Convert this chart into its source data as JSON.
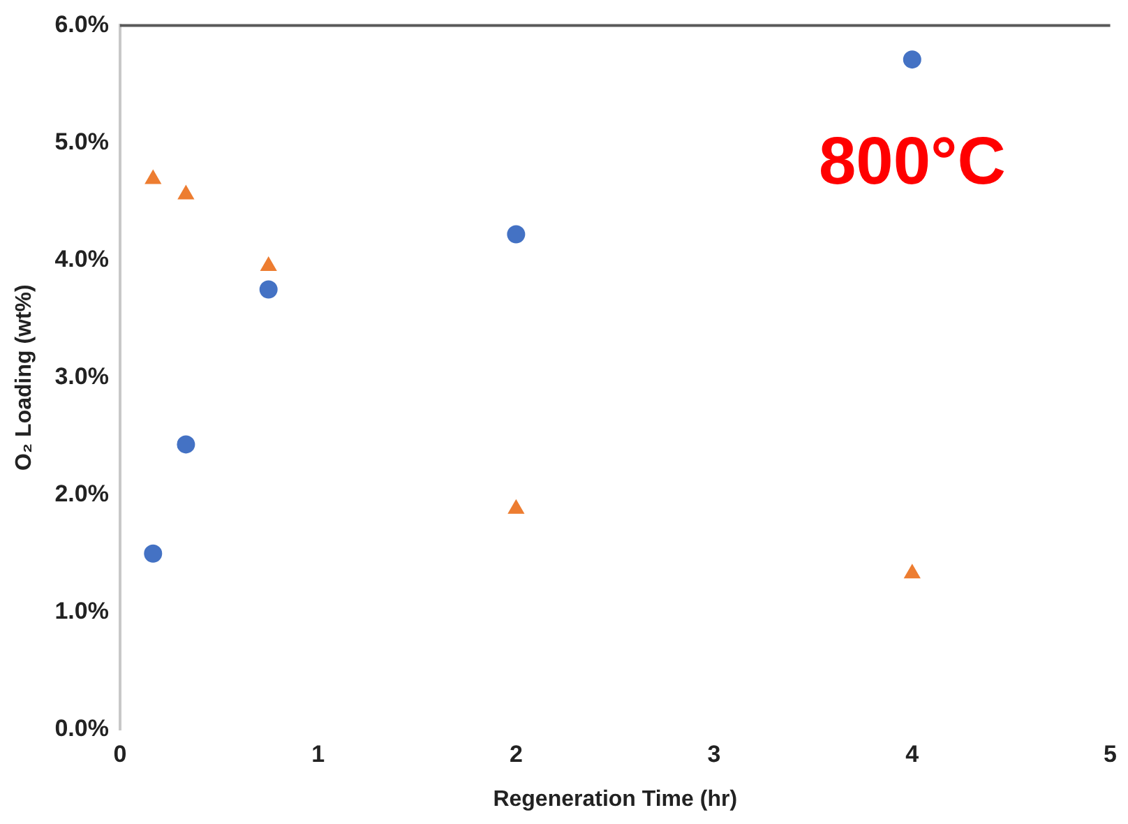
{
  "chart_data": {
    "type": "scatter",
    "xlabel": "Regeneration Time (hr)",
    "ylabel": "O₂ Loading (wt%)",
    "annotations": [
      "800°C"
    ],
    "series": [
      {
        "color": "#4472c4",
        "marker": "circle",
        "x": [
          0.167,
          0.333,
          0.75,
          2,
          4
        ],
        "values": [
          1.5,
          2.43,
          3.75,
          4.22,
          5.71
        ]
      },
      {
        "color": "#ed7d31",
        "marker": "triangle",
        "x": [
          0.167,
          0.333,
          0.75,
          2,
          4
        ],
        "values": [
          4.69,
          4.56,
          3.95,
          1.88,
          1.33
        ]
      }
    ],
    "xlim": [
      0,
      5
    ],
    "xticks": [
      0,
      1,
      2,
      3,
      4,
      5
    ],
    "ylim": [
      0,
      6
    ],
    "yticks": [
      {
        "value": 0,
        "label": "0.0%"
      },
      {
        "value": 1,
        "label": "1.0%"
      },
      {
        "value": 2,
        "label": "2.0%"
      },
      {
        "value": 3,
        "label": "3.0%"
      },
      {
        "value": 4,
        "label": "4.0%"
      },
      {
        "value": 5,
        "label": "5.0%"
      },
      {
        "value": 6,
        "label": "6.0%"
      }
    ],
    "grid": false,
    "legend": false
  }
}
